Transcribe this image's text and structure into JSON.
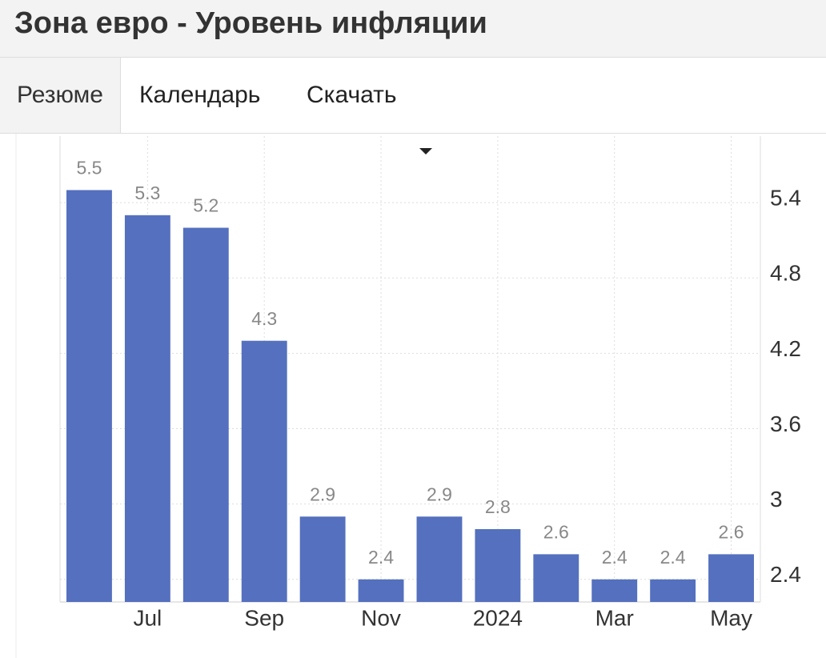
{
  "title": "Зона евро - Уровень инфляции",
  "tabs": [
    "Резюме",
    "Календарь",
    "Скачать"
  ],
  "chart_data": {
    "type": "bar",
    "categories": [
      null,
      "Jul",
      null,
      "Sep",
      null,
      "Nov",
      null,
      "2024",
      null,
      "Mar",
      null,
      "May"
    ],
    "values": [
      5.5,
      5.3,
      5.2,
      4.3,
      2.9,
      2.4,
      2.9,
      2.8,
      2.6,
      2.4,
      2.4,
      2.6
    ],
    "color": "#5470be",
    "ylim": [
      2.22,
      5.93
    ],
    "yticks": [
      2.4,
      3.0,
      3.6,
      4.2,
      4.8,
      5.4
    ],
    "value_labels": [
      "5.5",
      "5.3",
      "5.2",
      "4.3",
      "2.9",
      "2.4",
      "2.9",
      "2.8",
      "2.6",
      "2.4",
      "2.4",
      "2.6"
    ],
    "yticks_side": "right",
    "grid": true
  }
}
